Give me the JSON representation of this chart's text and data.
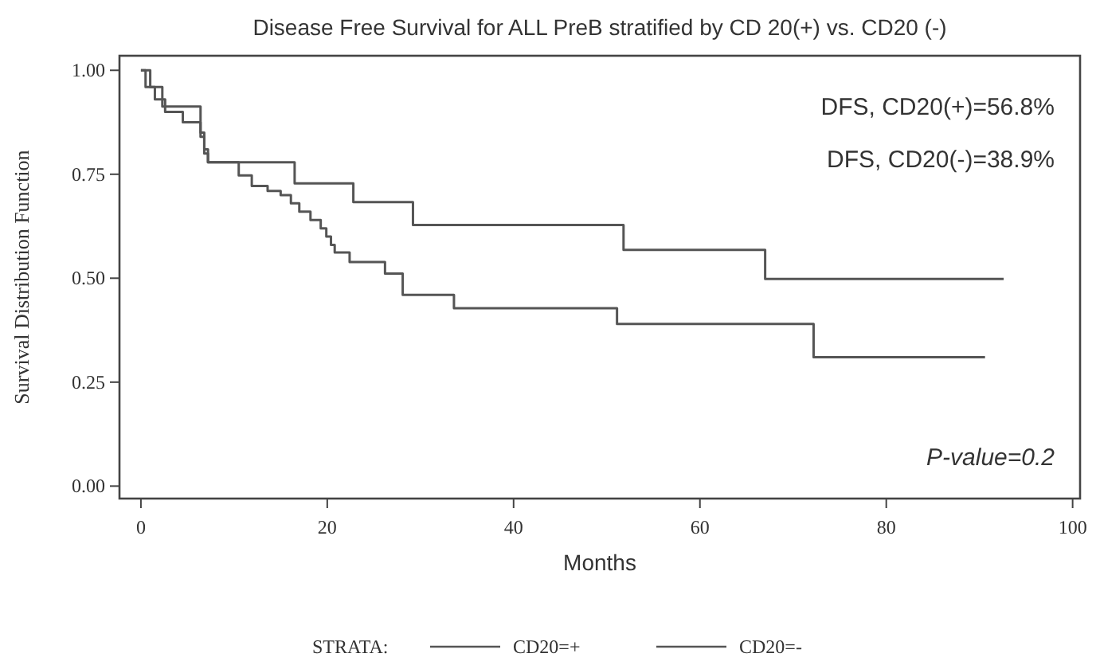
{
  "chart_data": {
    "type": "step",
    "title": "Disease Free Survival for ALL PreB stratified by CD 20(+) vs. CD20 (-)",
    "xlabel": "Months",
    "ylabel": "Survival Distribution Function",
    "legend_title": "STRATA:",
    "legend": "bottom",
    "xlim": [
      -2.3,
      100.8
    ],
    "xticks": [
      0,
      20,
      40,
      60,
      80,
      100
    ],
    "ylim": [
      -0.03,
      1.035
    ],
    "yticks": [
      {
        "value": 0,
        "label": "0.00"
      },
      {
        "value": 0.25,
        "label": "0.25"
      },
      {
        "value": 0.5,
        "label": "0.50"
      },
      {
        "value": 0.75,
        "label": "0.75"
      },
      {
        "value": 1,
        "label": "1.00"
      }
    ],
    "grid": false,
    "marker": "none",
    "line_style": "solid",
    "series": [
      {
        "name": "CD20=+",
        "color": "#555555",
        "x": [
          0,
          1,
          2.3,
          6.4,
          6.8,
          7.2,
          16.5,
          22.8,
          29.2,
          51.8,
          67.0,
          92.6
        ],
        "values": [
          1.0,
          0.96,
          0.913,
          0.85,
          0.81,
          0.779,
          0.728,
          0.683,
          0.628,
          0.568,
          0.498,
          0.498
        ]
      },
      {
        "name": "CD20=-",
        "color": "#555555",
        "x": [
          0,
          0.5,
          1.5,
          2.6,
          4.5,
          6.4,
          6.8,
          7.2,
          10.5,
          11.9,
          13.6,
          15,
          16.1,
          17,
          18.2,
          19.3,
          19.9,
          20.4,
          20.8,
          22.4,
          26.2,
          28.1,
          33.6,
          51.1,
          72.2,
          90.6
        ],
        "values": [
          1.0,
          0.96,
          0.93,
          0.9,
          0.875,
          0.84,
          0.8,
          0.779,
          0.747,
          0.722,
          0.71,
          0.7,
          0.68,
          0.66,
          0.64,
          0.62,
          0.6,
          0.58,
          0.562,
          0.539,
          0.511,
          0.46,
          0.428,
          0.39,
          0.31,
          0.31
        ]
      }
    ],
    "annotations": [
      "DFS, CD20(+)=56.8%",
      "DFS, CD20(-)=38.9%",
      "P-value=0.2"
    ]
  }
}
